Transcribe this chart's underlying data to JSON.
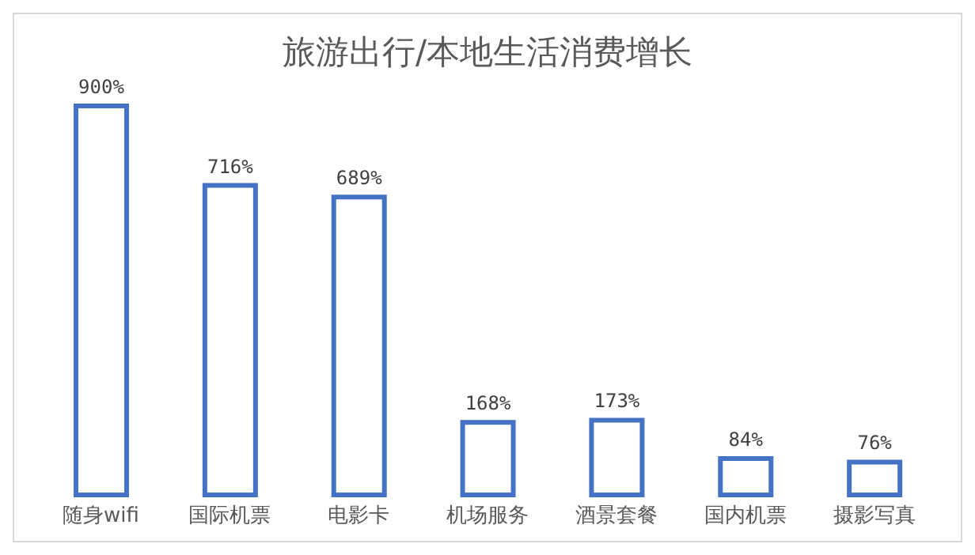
{
  "chart_data": {
    "type": "bar",
    "title": "旅游出行/本地生活消费增长",
    "categories": [
      "随身wifi",
      "国际机票",
      "电影卡",
      "机场服务",
      "酒景套餐",
      "国内机票",
      "摄影写真"
    ],
    "values": [
      900,
      716,
      689,
      168,
      173,
      84,
      76
    ],
    "color": "#4472c4",
    "value_labels": [
      "900%",
      "716%",
      "689%",
      "168%",
      "173%",
      "84%",
      "76%"
    ]
  }
}
